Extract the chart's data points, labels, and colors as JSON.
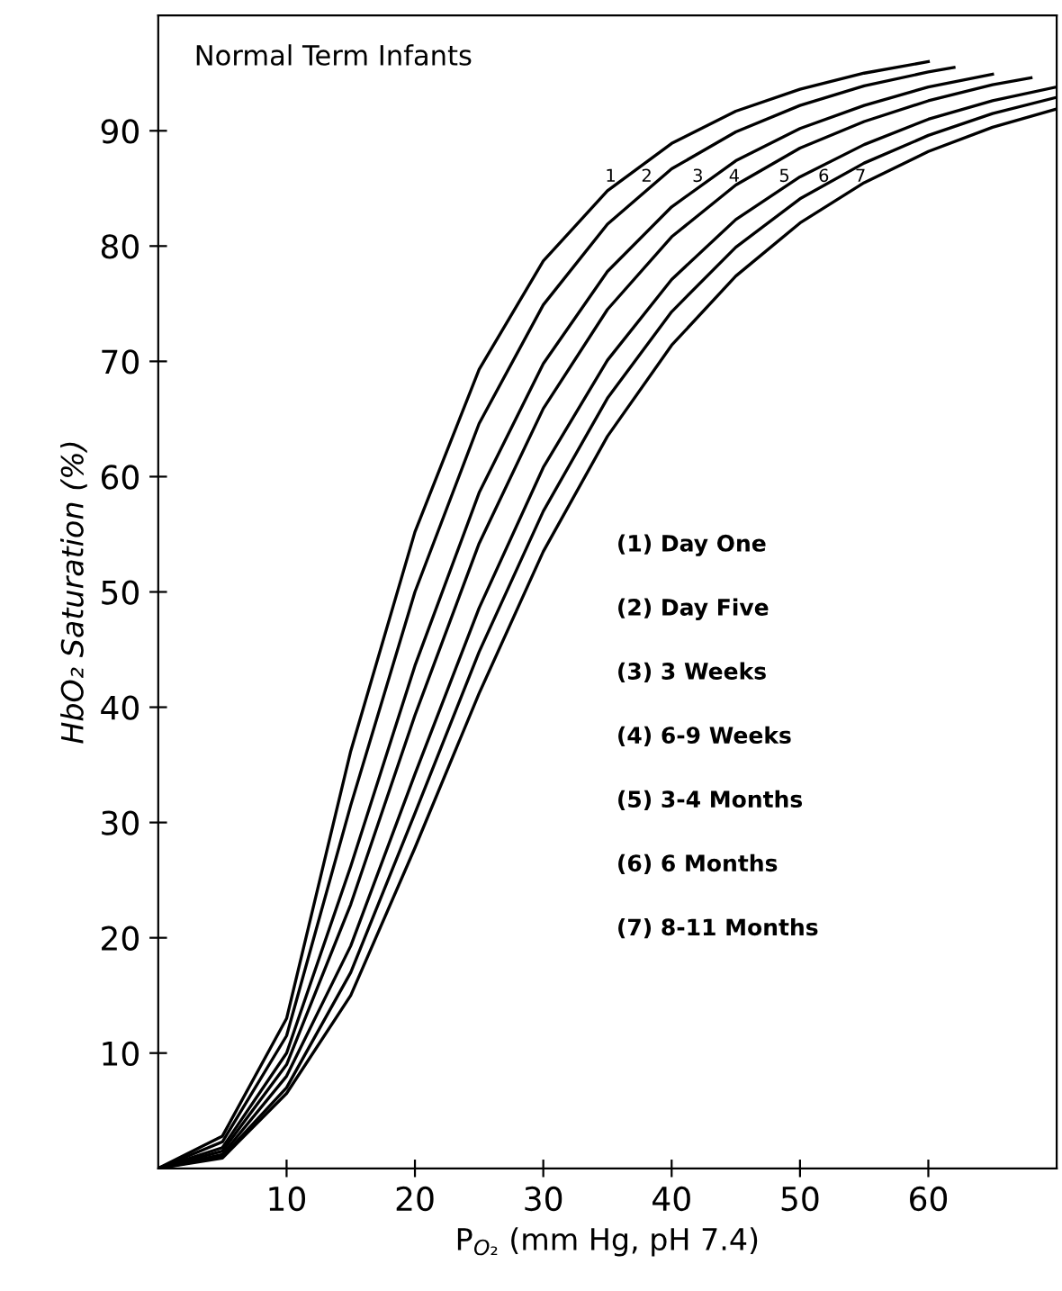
{
  "chart_data": {
    "type": "line",
    "title": "Normal Term Infants",
    "xlabel": "P$_{O₂}$ (mm Hg, pH 7.4)",
    "ylabel": "HbO₂ Saturation (%)",
    "xlim": [
      0,
      70
    ],
    "ylim": [
      0,
      100
    ],
    "xticks": [
      10,
      20,
      30,
      40,
      50,
      60
    ],
    "yticks": [
      10,
      20,
      30,
      40,
      50,
      60,
      70,
      80,
      90
    ],
    "grid": false,
    "marker": "none",
    "line_style": "solid",
    "series": [
      {
        "name": "1",
        "color": "#000000",
        "x": [
          0,
          5,
          10,
          15,
          20,
          25,
          30,
          35,
          40,
          45,
          50,
          55,
          60
        ],
        "values": [
          0,
          2.8,
          13,
          36.2,
          55.2,
          69.3,
          78.7,
          84.8,
          88.9,
          91.7,
          93.6,
          95.0,
          96.0
        ]
      },
      {
        "name": "2",
        "color": "#000000",
        "x": [
          0,
          5,
          10,
          15,
          20,
          25,
          30,
          35,
          40,
          45,
          50,
          55,
          60,
          62
        ],
        "values": [
          0,
          2.3,
          11.5,
          31.5,
          50,
          64.6,
          74.9,
          81.9,
          86.7,
          89.9,
          92.2,
          93.9,
          95.1,
          95.5
        ]
      },
      {
        "name": "3",
        "color": "#000000",
        "x": [
          0,
          5,
          10,
          15,
          20,
          25,
          30,
          35,
          40,
          45,
          50,
          55,
          60,
          65
        ],
        "values": [
          0,
          1.8,
          10,
          26.2,
          43.6,
          58.6,
          69.8,
          77.8,
          83.4,
          87.4,
          90.2,
          92.2,
          93.8,
          94.9
        ]
      },
      {
        "name": "4",
        "color": "#000000",
        "x": [
          0,
          5,
          10,
          15,
          20,
          25,
          30,
          35,
          40,
          45,
          50,
          55,
          60,
          65,
          68
        ],
        "values": [
          0,
          1.5,
          9,
          22.9,
          39.3,
          54.2,
          65.9,
          74.5,
          80.8,
          85.3,
          88.5,
          90.8,
          92.6,
          94.0,
          94.6
        ]
      },
      {
        "name": "5",
        "color": "#000000",
        "x": [
          0,
          5,
          10,
          15,
          20,
          25,
          30,
          35,
          40,
          45,
          50,
          55,
          60,
          65,
          70
        ],
        "values": [
          0,
          1.2,
          8,
          19.3,
          34.2,
          48.6,
          60.8,
          70.1,
          77.1,
          82.3,
          86.0,
          88.8,
          91.0,
          92.6,
          93.8
        ]
      },
      {
        "name": "6",
        "color": "#000000",
        "x": [
          0,
          5,
          10,
          15,
          20,
          25,
          30,
          35,
          40,
          45,
          50,
          55,
          60,
          65,
          70
        ],
        "values": [
          0,
          1.0,
          7,
          17.0,
          30.8,
          44.8,
          57.0,
          66.8,
          74.3,
          79.9,
          84.1,
          87.2,
          89.6,
          91.5,
          92.9
        ]
      },
      {
        "name": "7",
        "color": "#000000",
        "x": [
          0,
          5,
          10,
          15,
          20,
          25,
          30,
          35,
          40,
          45,
          50,
          55,
          60,
          65,
          70
        ],
        "values": [
          0,
          0.9,
          6.5,
          15.0,
          27.8,
          41.2,
          53.5,
          63.5,
          71.4,
          77.4,
          82.0,
          85.5,
          88.2,
          90.3,
          91.9
        ]
      }
    ],
    "annotations": [
      "(1) Day One",
      "(2) Day Five",
      "(3) 3 Weeks",
      "(4) 6-9 Weeks",
      "(5) 3-4 Months",
      "(6) 6 Months",
      "(7) 8-11 Months"
    ]
  }
}
